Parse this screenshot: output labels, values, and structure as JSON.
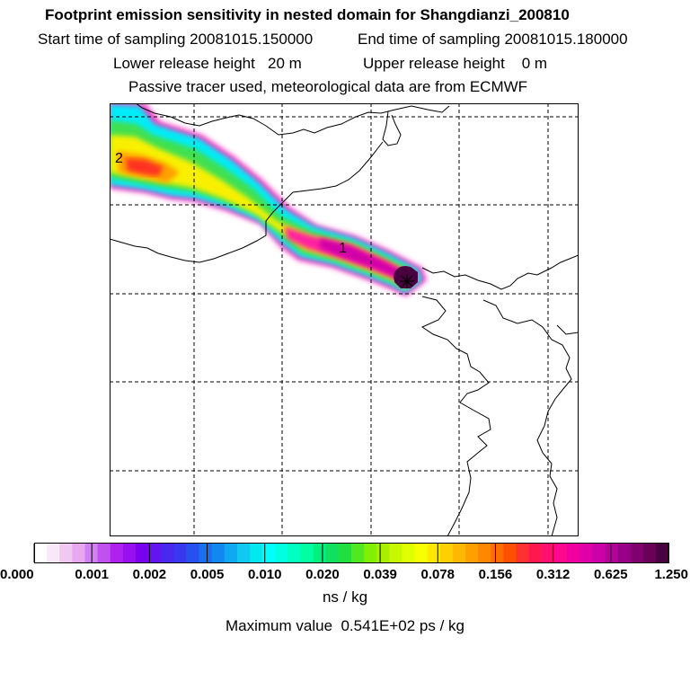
{
  "header": {
    "title": "Footprint emission sensitivity in nested domain for Shangdianzi_200810",
    "start": "Start time of sampling 20081015.150000",
    "end": "End time of sampling 20081015.180000",
    "lower": "Lower release height   20 m",
    "upper": "Upper release height    0 m",
    "tracer": "Passive tracer used, meteorological data are from ECMWF"
  },
  "chart_data": {
    "type": "heatmap",
    "title": "Footprint emission sensitivity in nested domain for Shangdianzi_200810",
    "colorbar": {
      "tick_labels": [
        "0.000",
        "0.001",
        "0.002",
        "0.005",
        "0.010",
        "0.020",
        "0.039",
        "0.078",
        "0.156",
        "0.312",
        "0.625",
        "1.250"
      ],
      "colors": [
        "#ffffff",
        "#f8e8f8",
        "#f0c8f0",
        "#e8a8f0",
        "#d080f0",
        "#c050f0",
        "#b020f0",
        "#9810f0",
        "#7a00f0",
        "#6414f0",
        "#4a28f0",
        "#3838f0",
        "#2850f0",
        "#1870f0",
        "#1088f0",
        "#10a8f0",
        "#10c8f0",
        "#00e8f0",
        "#00ffff",
        "#00ffe0",
        "#00ffc0",
        "#00ffa0",
        "#00f080",
        "#10e060",
        "#20e040",
        "#50e820",
        "#80f000",
        "#a8f000",
        "#c8f800",
        "#e0ff00",
        "#f8ff00",
        "#ffe800",
        "#ffd000",
        "#ffb800",
        "#ffa000",
        "#ff8800",
        "#ff6c00",
        "#ff5000",
        "#ff3030",
        "#ff1850",
        "#ff1070",
        "#ff0890",
        "#f000a0",
        "#e000a8",
        "#cc00a8",
        "#b40098",
        "#980088",
        "#800070",
        "#6a0058",
        "#4a0040"
      ]
    },
    "units": "ns / kg",
    "maximum": "Maximum value  0.541E+02 ps / kg",
    "annotations": [
      "1",
      "2"
    ],
    "plume_labels": [
      "1",
      "2"
    ]
  }
}
